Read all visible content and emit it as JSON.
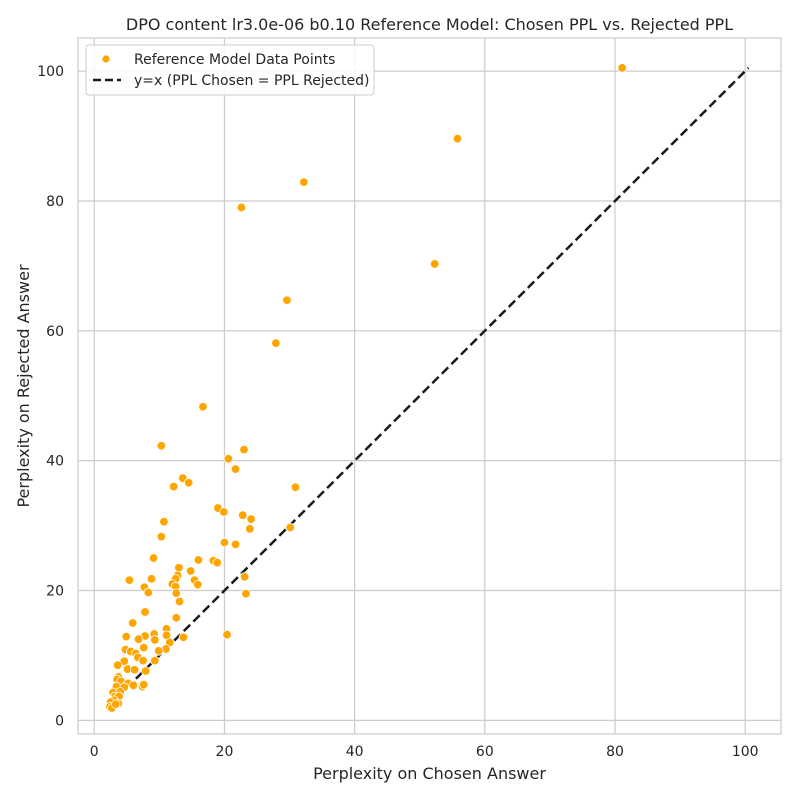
{
  "chart_data": {
    "type": "scatter",
    "title": "DPO content lr3.0e-06 b0.10 Reference Model: Chosen PPL vs. Rejected PPL",
    "xlabel": "Perplexity on Chosen Answer",
    "ylabel": "Perplexity on Rejected Answer",
    "xlim": [
      -2.5,
      105.5
    ],
    "ylim": [
      -2.1,
      105.1
    ],
    "xticks": [
      0,
      20,
      40,
      60,
      80,
      100
    ],
    "yticks": [
      0,
      20,
      40,
      60,
      80,
      100
    ],
    "grid": true,
    "legend_position": "top-left",
    "colors": {
      "points": "#ffa500",
      "reference_line": "#1a1a1a",
      "grid": "#cccccc"
    },
    "series": [
      {
        "name": "Reference Model Data Points",
        "kind": "scatter",
        "points": [
          [
            81.1,
            100.5
          ],
          [
            55.8,
            89.6
          ],
          [
            32.2,
            82.9
          ],
          [
            22.6,
            79.0
          ],
          [
            52.3,
            70.3
          ],
          [
            29.6,
            64.7
          ],
          [
            27.9,
            58.1
          ],
          [
            16.7,
            48.3
          ],
          [
            10.3,
            42.3
          ],
          [
            23.0,
            41.7
          ],
          [
            20.6,
            40.3
          ],
          [
            21.7,
            38.7
          ],
          [
            13.6,
            37.3
          ],
          [
            14.5,
            36.6
          ],
          [
            12.2,
            36.0
          ],
          [
            30.9,
            35.9
          ],
          [
            19.0,
            32.7
          ],
          [
            19.9,
            32.1
          ],
          [
            22.8,
            31.6
          ],
          [
            24.1,
            31.0
          ],
          [
            10.7,
            30.6
          ],
          [
            30.1,
            29.7
          ],
          [
            23.9,
            29.5
          ],
          [
            10.3,
            28.3
          ],
          [
            20.0,
            27.4
          ],
          [
            21.7,
            27.1
          ],
          [
            9.1,
            25.0
          ],
          [
            16.0,
            24.7
          ],
          [
            18.3,
            24.6
          ],
          [
            18.9,
            24.3
          ],
          [
            13.0,
            23.5
          ],
          [
            14.8,
            23.0
          ],
          [
            12.8,
            22.3
          ],
          [
            23.1,
            22.1
          ],
          [
            8.8,
            21.8
          ],
          [
            12.5,
            21.8
          ],
          [
            5.4,
            21.6
          ],
          [
            15.4,
            21.6
          ],
          [
            12.0,
            21.0
          ],
          [
            15.9,
            20.9
          ],
          [
            12.5,
            20.6
          ],
          [
            7.7,
            20.5
          ],
          [
            8.3,
            19.7
          ],
          [
            12.6,
            19.6
          ],
          [
            23.3,
            19.5
          ],
          [
            13.1,
            18.3
          ],
          [
            7.8,
            16.7
          ],
          [
            12.6,
            15.8
          ],
          [
            5.9,
            15.0
          ],
          [
            11.1,
            14.1
          ],
          [
            20.4,
            13.2
          ],
          [
            9.2,
            13.3
          ],
          [
            11.1,
            13.1
          ],
          [
            7.8,
            13.0
          ],
          [
            4.9,
            12.9
          ],
          [
            13.7,
            12.8
          ],
          [
            9.3,
            12.4
          ],
          [
            6.8,
            12.5
          ],
          [
            11.6,
            12.0
          ],
          [
            4.8,
            10.9
          ],
          [
            11.0,
            11.0
          ],
          [
            7.6,
            11.2
          ],
          [
            9.9,
            10.7
          ],
          [
            5.6,
            10.6
          ],
          [
            6.4,
            10.3
          ],
          [
            6.7,
            9.7
          ],
          [
            9.3,
            9.2
          ],
          [
            4.6,
            9.1
          ],
          [
            7.5,
            9.2
          ],
          [
            3.6,
            8.5
          ],
          [
            5.1,
            7.9
          ],
          [
            6.2,
            7.8
          ],
          [
            7.9,
            7.6
          ],
          [
            3.7,
            6.7
          ],
          [
            3.5,
            6.3
          ],
          [
            4.1,
            6.0
          ],
          [
            5.2,
            5.7
          ],
          [
            6.0,
            5.4
          ],
          [
            3.4,
            5.2
          ],
          [
            7.4,
            5.2
          ],
          [
            7.6,
            5.5
          ],
          [
            4.6,
            5.1
          ],
          [
            2.9,
            4.3
          ],
          [
            4.0,
            4.4
          ],
          [
            3.2,
            3.7
          ],
          [
            3.8,
            3.7
          ],
          [
            3.0,
            3.1
          ],
          [
            2.5,
            2.8
          ],
          [
            3.7,
            2.6
          ],
          [
            2.4,
            2.1
          ],
          [
            2.7,
            1.9
          ],
          [
            3.3,
            2.5
          ]
        ]
      },
      {
        "name": "y=x (PPL Chosen = PPL Rejected)",
        "kind": "line",
        "dash": "dashed",
        "points": [
          [
            2.0,
            2.0
          ],
          [
            100.5,
            100.5
          ]
        ]
      }
    ]
  }
}
